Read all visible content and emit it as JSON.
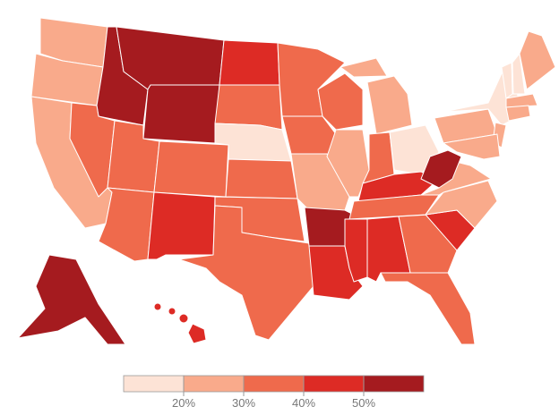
{
  "legend": {
    "ticks": [
      {
        "value": 20,
        "label": "20%"
      },
      {
        "value": 30,
        "label": "30%"
      },
      {
        "value": 40,
        "label": "40%"
      },
      {
        "value": 50,
        "label": "50%"
      }
    ],
    "colors": [
      "#fde3d6",
      "#f9aa8b",
      "#ef6a4c",
      "#dd2b25",
      "#a51b1f"
    ]
  },
  "regions": [
    25,
    25,
    25,
    55,
    35,
    55,
    55,
    35,
    35,
    35,
    45,
    45,
    35,
    15,
    35,
    35,
    35,
    35,
    35,
    25,
    55,
    45,
    35,
    25,
    25,
    25,
    35,
    15,
    45,
    35,
    45,
    45,
    35,
    35,
    45,
    25,
    25,
    55,
    25,
    15,
    25,
    25,
    15,
    15,
    25,
    25,
    25,
    55,
    45,
    45,
    45,
    45
  ]
}
